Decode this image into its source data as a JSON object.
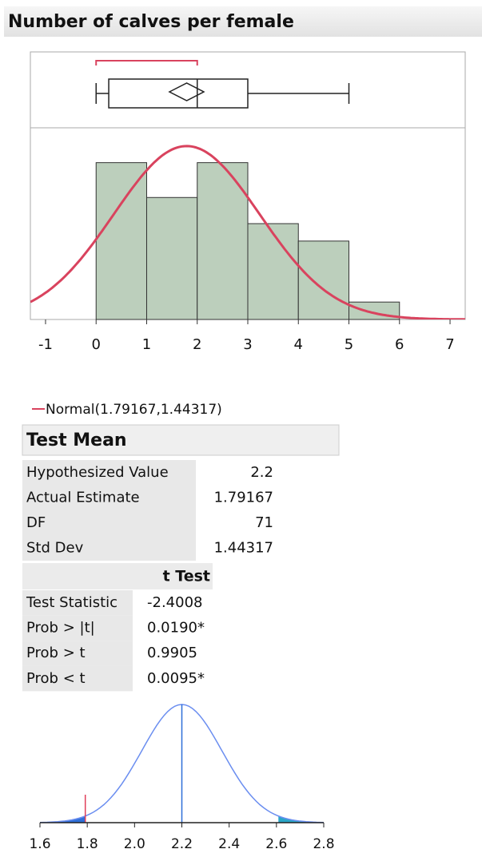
{
  "header": {
    "title": "Number of calves per female"
  },
  "chart_data": [
    {
      "type": "histogram",
      "bins": [
        0,
        1,
        2,
        3,
        4,
        5,
        6
      ],
      "values": [
        18,
        14,
        18,
        11,
        9,
        2
      ],
      "color": "#bccfbc",
      "xlim": [
        -1.3,
        7.3
      ],
      "xticks": [
        -1,
        0,
        1,
        2,
        3,
        4,
        5,
        6,
        7
      ],
      "ylim": [
        0,
        22
      ],
      "normal": {
        "mean": 1.79167,
        "sd": 1.44317,
        "color": "#d9435e",
        "label": "Normal(1.79167,1.44317)"
      },
      "box": {
        "min": 0,
        "q1": 0.25,
        "median": 2,
        "q3": 3,
        "max": 5,
        "mean_ci": [
          1.45,
          2.13
        ],
        "shortest_half": [
          0,
          2
        ]
      }
    },
    {
      "type": "density",
      "xlim": [
        1.6,
        2.8
      ],
      "xticks": [
        1.6,
        1.8,
        {
          "value": 2,
          "label": "2.0"
        },
        2.2,
        2.4,
        2.6,
        2.8
      ],
      "color": "#6b8ef0",
      "marker_color": "#e0405a",
      "tail_colors": [
        "#2f6fd8",
        "#2aa6c8"
      ]
    }
  ],
  "test_mean": {
    "title": "Test Mean",
    "rows": [
      [
        "Hypothesized Value",
        2.2
      ],
      [
        "Actual Estimate",
        1.79167
      ],
      [
        "DF",
        71
      ],
      [
        "Std Dev",
        1.44317
      ]
    ]
  },
  "t_test": {
    "title": "t Test",
    "rows": [
      [
        "Test Statistic",
        -2.4008
      ],
      [
        "Prob > |t|",
        "0.0190*"
      ],
      [
        "Prob > t",
        0.9905
      ],
      [
        "Prob < t",
        "0.0095*"
      ]
    ],
    "value_colors": [
      "#000000",
      "#e0405a",
      "#000000",
      "#f08a24"
    ]
  }
}
